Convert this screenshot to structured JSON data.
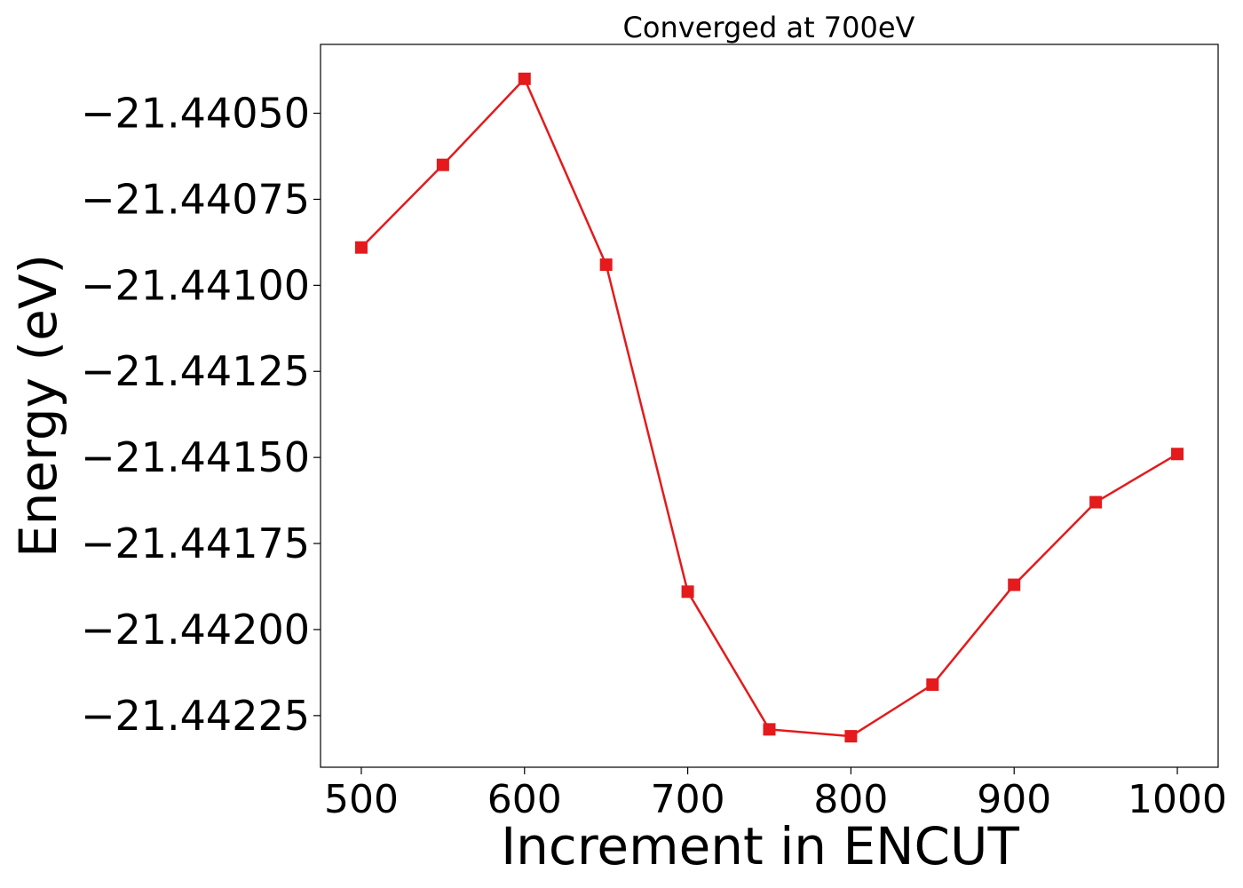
{
  "chart_data": {
    "type": "line",
    "title": "Converged at 700eV",
    "xlabel": "Increment in ENCUT",
    "ylabel": "Energy (eV)",
    "x": [
      500,
      550,
      600,
      650,
      700,
      750,
      800,
      850,
      900,
      950,
      1000
    ],
    "series": [
      {
        "values": [
          -21.44089,
          -21.44065,
          -21.4404,
          -21.44094,
          -21.44189,
          -21.44229,
          -21.44231,
          -21.44216,
          -21.44187,
          -21.44163,
          -21.44149
        ],
        "color": "#e41a1c",
        "marker": "square"
      }
    ],
    "xlim": [
      475,
      1025
    ],
    "ylim": [
      -21.4424,
      -21.4403
    ],
    "xticks": [
      500,
      600,
      700,
      800,
      900,
      1000
    ],
    "xtick_labels": [
      "500",
      "600",
      "700",
      "800",
      "900",
      "1000"
    ],
    "yticks": [
      -21.4405,
      -21.44075,
      -21.441,
      -21.44125,
      -21.4415,
      -21.44175,
      -21.442,
      -21.44225
    ],
    "ytick_labels": [
      "−21.44050",
      "−21.44075",
      "−21.44100",
      "−21.44125",
      "−21.44150",
      "−21.44175",
      "−21.44200",
      "−21.44225"
    ],
    "grid": false,
    "legend": false
  }
}
